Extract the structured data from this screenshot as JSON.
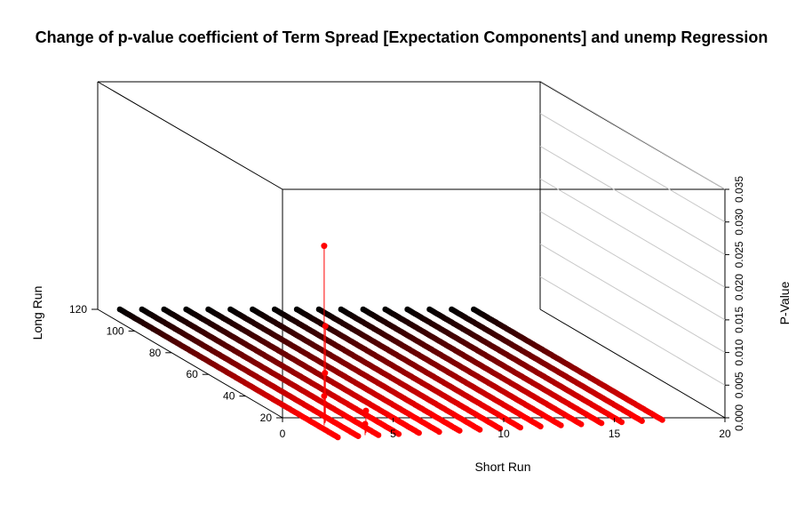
{
  "chart_data": {
    "type": "scatter",
    "title": "Change of p-value coefficient of Term Spread [Expectation Components] and unemp Regression",
    "xlabel": "Short Run",
    "ylabel": "Long Run",
    "zlabel": "P-Value",
    "xlim": [
      0,
      20
    ],
    "ylim": [
      20,
      120
    ],
    "zlim": [
      0,
      0.035
    ],
    "x_ticks": [
      "0",
      "5",
      "10",
      "15",
      "20"
    ],
    "y_ticks": [
      "20",
      "40",
      "60",
      "80",
      "100",
      "120"
    ],
    "z_ticks": [
      "0.000",
      "0.005",
      "0.010",
      "0.015",
      "0.020",
      "0.025",
      "0.030",
      "0.035"
    ],
    "color_low": "#ff0000",
    "color_high": "#000000",
    "series": [
      {
        "x": 1,
        "y_from": 2,
        "y_to": 120
      },
      {
        "x": 2,
        "y_from": 3,
        "y_to": 120
      },
      {
        "x": 3,
        "y_from": 4,
        "y_to": 120
      },
      {
        "x": 4,
        "y_from": 5,
        "y_to": 120
      },
      {
        "x": 5,
        "y_from": 6,
        "y_to": 120
      },
      {
        "x": 6,
        "y_from": 7,
        "y_to": 120
      },
      {
        "x": 7,
        "y_from": 8,
        "y_to": 120
      },
      {
        "x": 8,
        "y_from": 9,
        "y_to": 120
      },
      {
        "x": 9,
        "y_from": 10,
        "y_to": 120
      },
      {
        "x": 10,
        "y_from": 11,
        "y_to": 120
      },
      {
        "x": 11,
        "y_from": 12,
        "y_to": 120
      },
      {
        "x": 12,
        "y_from": 13,
        "y_to": 120
      },
      {
        "x": 13,
        "y_from": 14,
        "y_to": 120
      },
      {
        "x": 14,
        "y_from": 15,
        "y_to": 120
      },
      {
        "x": 15,
        "y_from": 16,
        "y_to": 120
      },
      {
        "x": 16,
        "y_from": 17,
        "y_to": 120
      },
      {
        "x": 17,
        "y_from": 18,
        "y_to": 120
      }
    ],
    "highlights": [
      {
        "x": 1.8,
        "y": 19,
        "z": 0.0265
      },
      {
        "x": 1.6,
        "y": 16,
        "z": 0.0147
      },
      {
        "x": 1.5,
        "y": 15,
        "z": 0.0077
      },
      {
        "x": 1.3,
        "y": 13,
        "z": 0.0045
      },
      {
        "x": 2.6,
        "y": 6,
        "z": 0.0034
      },
      {
        "x": 2.4,
        "y": 4,
        "z": 0.0017
      }
    ]
  }
}
